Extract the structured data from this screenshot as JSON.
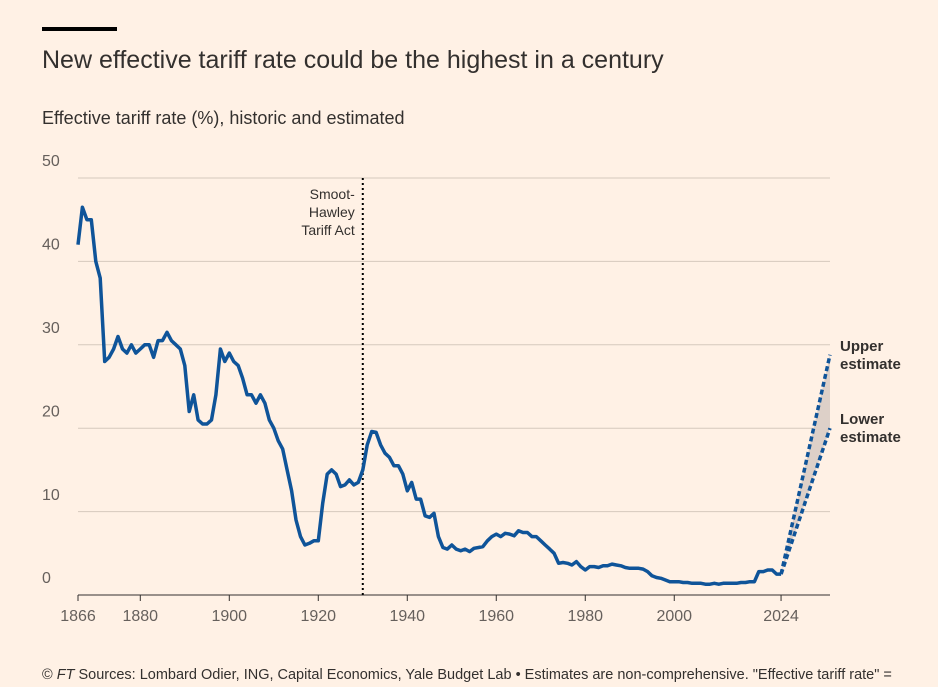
{
  "title": "New effective tariff rate could be the highest in a century",
  "subtitle": "Effective tariff rate (%), historic and estimated",
  "footer": {
    "copyright": "©",
    "brand": "FT",
    "text": "Sources: Lombard Odier, ING, Capital Economics, Yale Budget Lab • Estimates are non-comprehensive. \"Effective tariff rate\" ="
  },
  "chart_data": {
    "type": "line",
    "xlim": [
      1866,
      2035
    ],
    "ylim": [
      0,
      50
    ],
    "xticks": [
      1866,
      1880,
      1900,
      1920,
      1940,
      1960,
      1980,
      2000,
      2024
    ],
    "yticks": [
      0,
      10,
      20,
      30,
      40,
      50
    ],
    "grid": true,
    "annotation": {
      "text": "Smoot-Hawley Tariff Act",
      "x": 1930
    },
    "series": [
      {
        "color": "#0f5499",
        "dashed": false,
        "x": [
          1866,
          1867,
          1868,
          1869,
          1870,
          1871,
          1872,
          1873,
          1874,
          1875,
          1876,
          1877,
          1878,
          1879,
          1880,
          1881,
          1882,
          1883,
          1884,
          1885,
          1886,
          1887,
          1888,
          1889,
          1890,
          1891,
          1892,
          1893,
          1894,
          1895,
          1896,
          1897,
          1898,
          1899,
          1900,
          1901,
          1902,
          1903,
          1904,
          1905,
          1906,
          1907,
          1908,
          1909,
          1910,
          1911,
          1912,
          1913,
          1914,
          1915,
          1916,
          1917,
          1918,
          1919,
          1920,
          1921,
          1922,
          1923,
          1924,
          1925,
          1926,
          1927,
          1928,
          1929,
          1930,
          1931,
          1932,
          1933,
          1934,
          1935,
          1936,
          1937,
          1938,
          1939,
          1940,
          1941,
          1942,
          1943,
          1944,
          1945,
          1946,
          1947,
          1948,
          1949,
          1950,
          1951,
          1952,
          1953,
          1954,
          1955,
          1956,
          1957,
          1958,
          1959,
          1960,
          1961,
          1962,
          1963,
          1964,
          1965,
          1966,
          1967,
          1968,
          1969,
          1970,
          1971,
          1972,
          1973,
          1974,
          1975,
          1976,
          1977,
          1978,
          1979,
          1980,
          1981,
          1982,
          1983,
          1984,
          1985,
          1986,
          1987,
          1988,
          1989,
          1990,
          1991,
          1992,
          1993,
          1994,
          1995,
          1996,
          1997,
          1998,
          1999,
          2000,
          2001,
          2002,
          2003,
          2004,
          2005,
          2006,
          2007,
          2008,
          2009,
          2010,
          2011,
          2012,
          2013,
          2014,
          2015,
          2016,
          2017,
          2018,
          2019,
          2020,
          2021,
          2022,
          2023,
          2024
        ],
        "values": [
          42,
          46.5,
          45,
          45,
          40,
          38,
          28,
          28.5,
          29.5,
          31,
          29.5,
          29,
          30,
          29,
          29.5,
          30,
          30,
          28.5,
          30.5,
          30.5,
          31.5,
          30.5,
          30,
          29.5,
          27.5,
          22,
          24,
          21,
          20.5,
          20.5,
          21,
          24,
          29.5,
          28,
          29,
          28,
          27.5,
          26,
          24,
          24,
          23,
          24,
          23,
          21,
          20,
          18.5,
          17.5,
          15,
          12.5,
          9,
          7,
          6,
          6.2,
          6.5,
          6.5,
          11,
          14.5,
          15,
          14.5,
          13,
          13.2,
          13.8,
          13.2,
          13.5,
          15,
          18,
          19.6,
          19.5,
          18,
          17,
          16.5,
          15.5,
          15.5,
          14.5,
          12.5,
          13.5,
          11.5,
          11.5,
          9.5,
          9.3,
          9.8,
          7,
          5.7,
          5.5,
          6,
          5.5,
          5.3,
          5.5,
          5.2,
          5.6,
          5.7,
          5.8,
          6.5,
          7,
          7.3,
          7,
          7.4,
          7.3,
          7.1,
          7.7,
          7.5,
          7.5,
          7,
          7,
          6.5,
          6,
          5.5,
          5,
          3.8,
          3.9,
          3.8,
          3.6,
          4,
          3.4,
          3,
          3.4,
          3.4,
          3.3,
          3.5,
          3.5,
          3.7,
          3.6,
          3.5,
          3.3,
          3.2,
          3.2,
          3.2,
          3.1,
          2.8,
          2.3,
          2.1,
          2,
          1.8,
          1.6,
          1.6,
          1.6,
          1.5,
          1.5,
          1.4,
          1.4,
          1.4,
          1.3,
          1.3,
          1.4,
          1.3,
          1.4,
          1.4,
          1.4,
          1.4,
          1.5,
          1.5,
          1.6,
          1.6,
          2.8,
          2.8,
          3,
          3,
          2.5,
          2.5
        ]
      },
      {
        "name": "Upper estimate",
        "color": "#0f5499",
        "dashed": true,
        "x": [
          2024,
          2035
        ],
        "values": [
          2.5,
          28.8
        ]
      },
      {
        "name": "Lower estimate",
        "color": "#0f5499",
        "dashed": true,
        "x": [
          2024,
          2035
        ],
        "values": [
          2.5,
          20
        ]
      }
    ]
  }
}
